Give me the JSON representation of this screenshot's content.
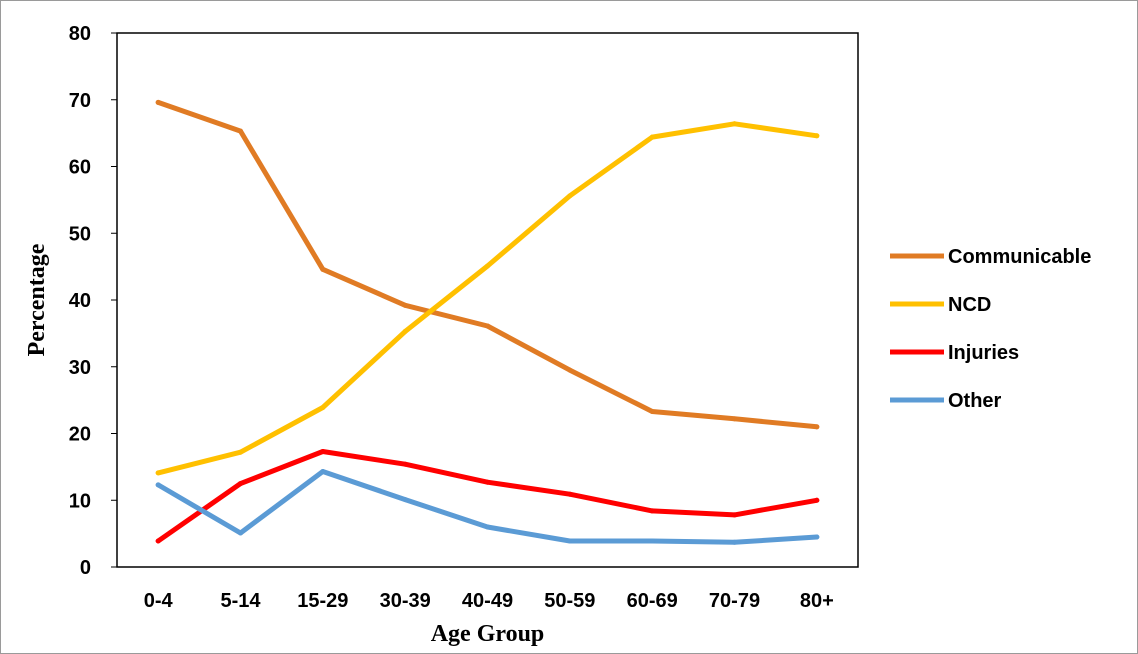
{
  "chart_data": {
    "type": "line",
    "categories": [
      "0-4",
      "5-14",
      "15-29",
      "30-39",
      "40-49",
      "50-59",
      "60-69",
      "70-79",
      "80+"
    ],
    "series": [
      {
        "name": "Communicable",
        "color": "#e07b24",
        "values": [
          69.6,
          65.3,
          44.6,
          39.2,
          36.1,
          29.5,
          23.3,
          22.2,
          21.0
        ]
      },
      {
        "name": "NCD",
        "color": "#ffc000",
        "values": [
          14.1,
          17.2,
          23.9,
          35.3,
          45.1,
          55.6,
          64.4,
          66.4,
          64.6
        ]
      },
      {
        "name": "Injuries",
        "color": "#ff0000",
        "values": [
          3.9,
          12.5,
          17.3,
          15.4,
          12.7,
          10.9,
          8.4,
          7.8,
          10.0
        ]
      },
      {
        "name": "Other",
        "color": "#5b9bd5",
        "values": [
          12.3,
          5.1,
          14.3,
          10.1,
          6.0,
          3.9,
          3.9,
          3.7,
          4.5
        ]
      }
    ],
    "xlabel": "Age Group",
    "ylabel": "Percentage",
    "ylim": [
      0,
      80
    ],
    "yticks": [
      0,
      10,
      20,
      30,
      40,
      50,
      60,
      70,
      80
    ],
    "grid": false,
    "legend_position": "right"
  }
}
